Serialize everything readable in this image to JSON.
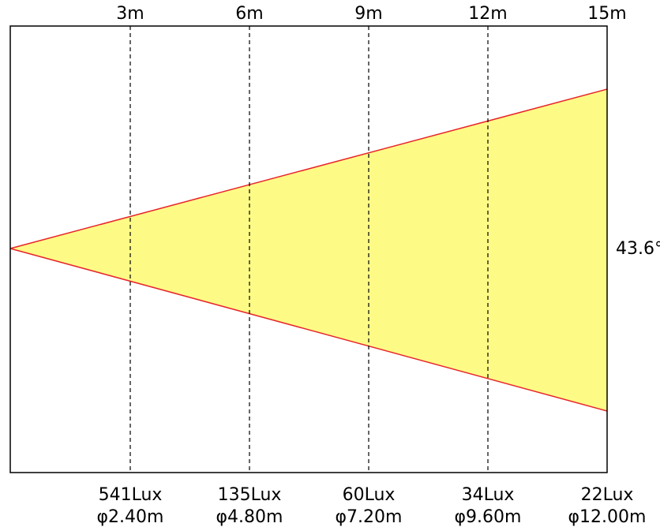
{
  "beam": {
    "angle_label": "43.6°",
    "colors": {
      "fill": "#fdfb86",
      "edge": "#e8232a",
      "frame": "#000000",
      "marker": "#000000"
    }
  },
  "distances": [
    "3m",
    "6m",
    "9m",
    "12m",
    "15m"
  ],
  "illuminance": [
    "541Lux",
    "135Lux",
    "60Lux",
    "34Lux",
    "22Lux"
  ],
  "diameters": [
    "φ2.40m",
    "φ4.80m",
    "φ7.20m",
    "φ9.60m",
    "φ12.00m"
  ]
}
